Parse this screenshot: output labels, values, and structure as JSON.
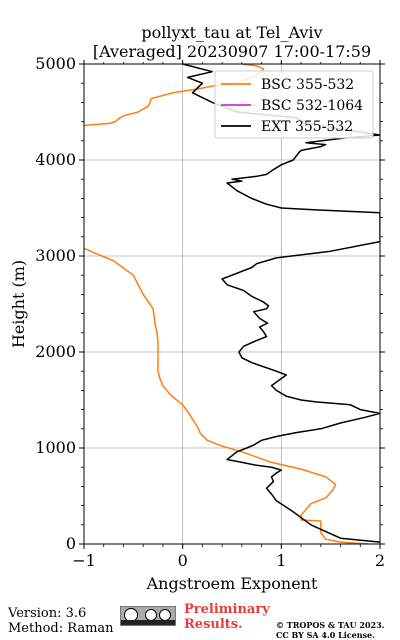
{
  "chart_data": {
    "type": "line",
    "title": [
      "pollyxt_tau at Tel_Aviv",
      "[Averaged] 20230907 17:00-17:59"
    ],
    "xlabel": "Angstroem Exponent",
    "ylabel": "Height (m)",
    "xlim": [
      -1,
      2
    ],
    "ylim": [
      0,
      5000
    ],
    "xticks": [
      -1,
      0,
      1,
      2
    ],
    "yticks": [
      0,
      1000,
      2000,
      3000,
      4000,
      5000
    ],
    "grid": true,
    "legend_position": "top-right",
    "series": [
      {
        "name": "BSC 355-532",
        "color": "#ff7f0e",
        "x": [
          -1.0,
          -0.82,
          -0.7,
          -0.5,
          -0.4,
          -0.3,
          -0.28,
          -0.26,
          -0.25,
          -0.25,
          -0.23,
          -0.2,
          -0.12,
          0.0,
          0.05,
          0.1,
          0.15,
          0.18,
          0.25,
          0.4,
          0.6,
          0.9,
          1.2,
          1.45,
          1.55,
          1.52,
          1.45,
          1.3,
          1.25,
          1.2,
          1.2,
          1.4,
          1.4,
          1.45,
          1.6,
          1.88
        ],
        "y": [
          3080,
          3000,
          2950,
          2800,
          2600,
          2450,
          2300,
          2200,
          2100,
          1800,
          1720,
          1650,
          1550,
          1450,
          1380,
          1300,
          1220,
          1150,
          1080,
          1020,
          960,
          850,
          780,
          700,
          620,
          560,
          480,
          420,
          360,
          300,
          250,
          240,
          120,
          50,
          20,
          0
        ]
      },
      {
        "name": "BSC 355-532",
        "color": "#ff7f0e",
        "x": [
          -1.0,
          -0.75,
          -0.68,
          -0.65,
          -0.6,
          -0.45,
          -0.35,
          -0.33,
          -0.32,
          -0.1,
          0.15,
          0.3,
          0.5,
          0.65,
          0.75,
          0.8,
          0.82,
          0.75,
          0.6
        ],
        "y": [
          4360,
          4380,
          4400,
          4430,
          4460,
          4500,
          4560,
          4600,
          4640,
          4700,
          4740,
          4770,
          4790,
          4840,
          4880,
          4920,
          4950,
          4980,
          5000
        ]
      },
      {
        "name": "BSC 532-1064",
        "color": "#d62cd6",
        "x": [],
        "y": []
      },
      {
        "name": "EXT 355-532",
        "color": "#000000",
        "x": [
          2.0,
          1.6,
          1.3,
          1.1,
          0.95,
          0.9,
          0.85,
          0.92,
          0.9,
          0.95,
          1.0,
          0.9,
          0.75,
          0.6,
          0.45,
          0.5,
          0.55,
          0.65,
          0.72,
          0.75,
          0.8,
          0.95,
          1.15,
          1.4,
          1.6,
          1.85,
          2.0,
          2.0,
          1.8,
          1.7,
          1.35,
          1.2,
          1.05,
          0.95,
          0.9,
          1.05,
          0.95,
          0.7,
          0.6,
          0.57,
          0.62,
          0.75,
          0.85,
          0.82,
          0.78,
          0.86,
          0.78,
          0.72,
          0.85,
          0.87,
          0.82,
          0.7,
          0.62,
          0.45,
          0.4,
          0.5,
          0.7,
          0.75,
          0.95,
          1.5,
          2.0,
          2.0,
          1.35,
          1.0,
          0.85,
          0.7,
          0.55,
          0.45,
          0.6,
          0.5,
          0.75,
          0.85,
          0.92,
          1.0,
          1.12,
          1.18,
          1.2,
          1.4,
          1.45,
          1.25,
          1.65,
          2.0,
          1.6,
          1.3,
          1.2,
          1.15,
          0.55,
          0.3,
          0.1,
          0.2,
          0.05,
          0.3,
          0.0
        ],
        "y": [
          20,
          60,
          200,
          350,
          450,
          520,
          580,
          650,
          700,
          740,
          770,
          800,
          820,
          850,
          880,
          920,
          960,
          1000,
          1030,
          1050,
          1080,
          1120,
          1160,
          1200,
          1260,
          1320,
          1360,
          1360,
          1400,
          1450,
          1480,
          1500,
          1540,
          1600,
          1650,
          1760,
          1800,
          1890,
          1940,
          2000,
          2060,
          2120,
          2160,
          2210,
          2260,
          2300,
          2350,
          2420,
          2450,
          2480,
          2520,
          2580,
          2640,
          2700,
          2760,
          2800,
          2880,
          2920,
          2980,
          3050,
          3150,
          3450,
          3480,
          3500,
          3540,
          3600,
          3680,
          3760,
          3780,
          3800,
          3830,
          3850,
          3900,
          3950,
          4000,
          4080,
          4100,
          4140,
          4160,
          4180,
          4230,
          4260,
          4320,
          4380,
          4410,
          4440,
          4500,
          4600,
          4700,
          4800,
          4860,
          4920,
          5000
        ]
      }
    ]
  },
  "footer": {
    "version": "Version: 3.6",
    "method": "Method: Raman",
    "preliminary_line1": "Preliminary",
    "preliminary_line2": "Results.",
    "license_line1": "© TROPOS & TAU 2023.",
    "license_line2": "CC BY SA 4.0 License."
  },
  "logo": {
    "name": "creative-commons-by-sa-logo",
    "text": "cc BY SA"
  }
}
